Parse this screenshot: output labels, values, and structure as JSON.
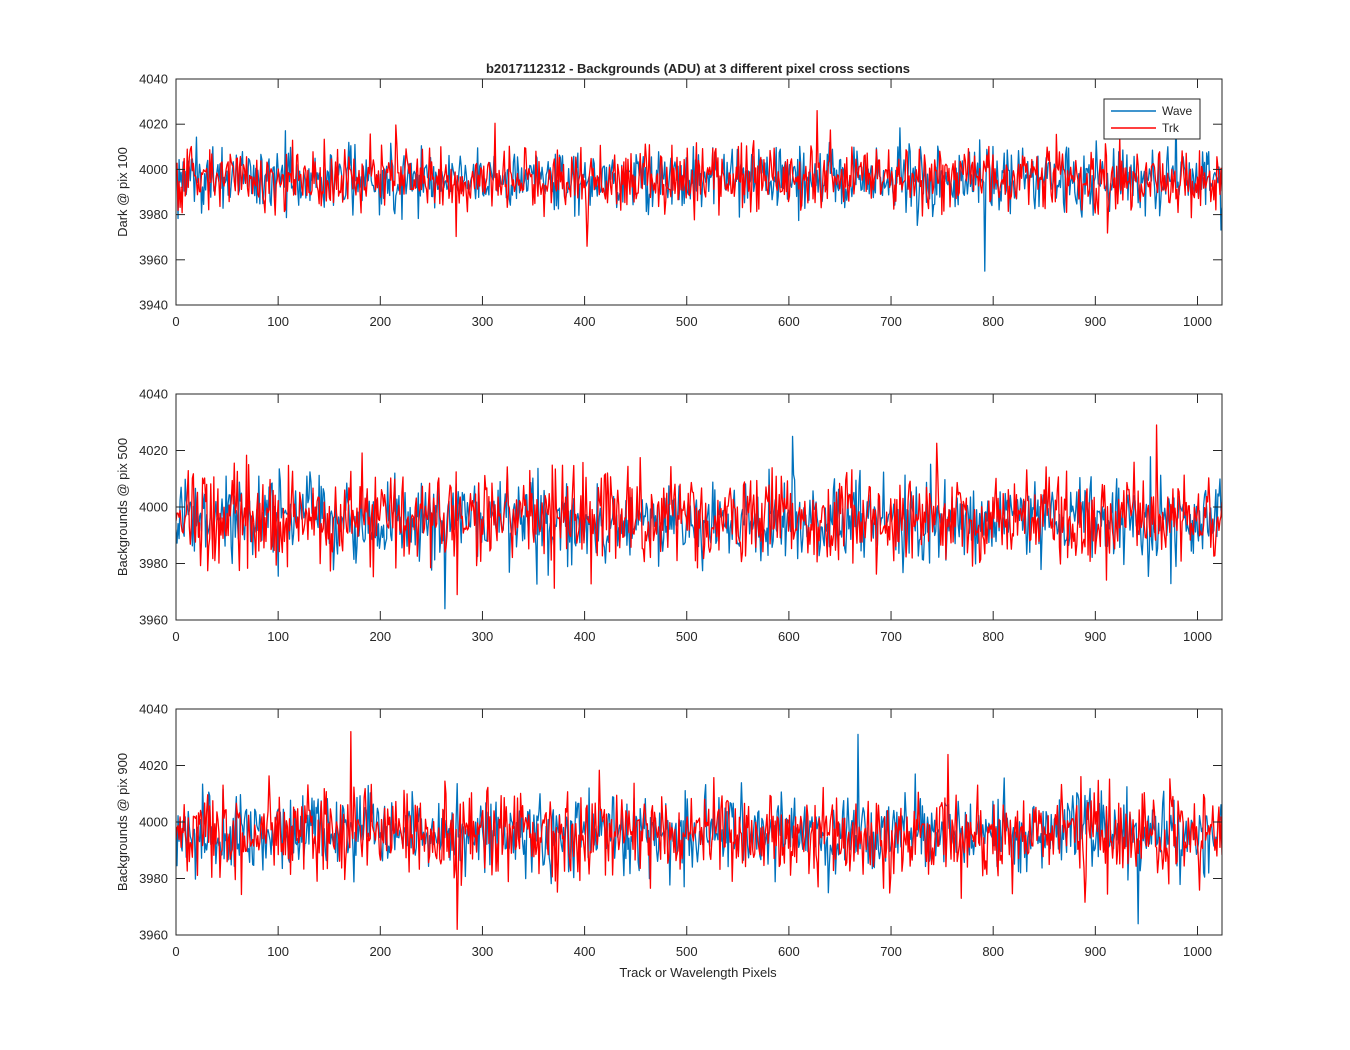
{
  "figure": {
    "title": "b2017112312 - Backgrounds (ADU) at 3 different pixel cross sections",
    "xlabel": "Track or Wavelength Pixels"
  },
  "colors": {
    "wave": "#0072BD",
    "trk": "#FF0000",
    "axes": "#262626"
  },
  "chart_data": [
    {
      "type": "line",
      "title": "b2017112312 - Backgrounds (ADU) at 3 different pixel cross sections",
      "ylabel": "Dark @ pix 100",
      "xlabel": "",
      "xlim": [
        0,
        1024
      ],
      "ylim": [
        3940,
        4040
      ],
      "x_ticks": [
        "0",
        "100",
        "200",
        "300",
        "400",
        "500",
        "600",
        "700",
        "800",
        "900",
        "1000"
      ],
      "y_ticks": [
        "3940",
        "3960",
        "3980",
        "4000",
        "4020",
        "4040"
      ],
      "legend": {
        "placement": "top-right",
        "entries": [
          "Wave",
          "Trk"
        ]
      },
      "grid": false,
      "series": [
        {
          "name": "Wave",
          "mean": 3996,
          "noise_sd": 7,
          "min": 3955,
          "max": 4026,
          "points": 1024
        },
        {
          "name": "Trk",
          "mean": 3996,
          "noise_sd": 7,
          "min": 3966,
          "max": 4026,
          "points": 1024
        }
      ]
    },
    {
      "type": "line",
      "title": "",
      "ylabel": "Backgrounds @ pix 500",
      "xlabel": "",
      "xlim": [
        0,
        1024
      ],
      "ylim": [
        3960,
        4040
      ],
      "x_ticks": [
        "0",
        "100",
        "200",
        "300",
        "400",
        "500",
        "600",
        "700",
        "800",
        "900",
        "1000"
      ],
      "y_ticks": [
        "3960",
        "3980",
        "4000",
        "4020",
        "4040"
      ],
      "grid": false,
      "series": [
        {
          "name": "Wave",
          "mean": 3995,
          "noise_sd": 7,
          "min": 3964,
          "max": 4025,
          "points": 1024
        },
        {
          "name": "Trk",
          "mean": 3996,
          "noise_sd": 8,
          "min": 3969,
          "max": 4029,
          "points": 1024
        }
      ]
    },
    {
      "type": "line",
      "title": "",
      "ylabel": "Backgrounds @ pix 900",
      "xlabel": "Track or Wavelength Pixels",
      "xlim": [
        0,
        1024
      ],
      "ylim": [
        3960,
        4040
      ],
      "x_ticks": [
        "0",
        "100",
        "200",
        "300",
        "400",
        "500",
        "600",
        "700",
        "800",
        "900",
        "1000"
      ],
      "y_ticks": [
        "3960",
        "3980",
        "4000",
        "4020",
        "4040"
      ],
      "grid": false,
      "series": [
        {
          "name": "Wave",
          "mean": 3996,
          "noise_sd": 7,
          "min": 3964,
          "max": 4031,
          "points": 1024
        },
        {
          "name": "Trk",
          "mean": 3996,
          "noise_sd": 8,
          "min": 3962,
          "max": 4032,
          "points": 1024
        }
      ]
    }
  ]
}
